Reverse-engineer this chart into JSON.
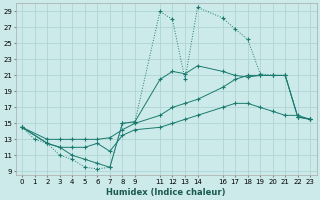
{
  "bg_color": "#cceaea",
  "grid_color": "#b0d4d4",
  "line_color": "#1a7a6e",
  "xlabel": "Humidex (Indice chaleur)",
  "xlim": [
    -0.5,
    23.5
  ],
  "ylim": [
    8.5,
    30
  ],
  "yticks": [
    9,
    11,
    13,
    15,
    17,
    19,
    21,
    23,
    25,
    27,
    29
  ],
  "xticks": [
    0,
    1,
    2,
    3,
    4,
    5,
    6,
    7,
    8,
    9,
    11,
    12,
    13,
    14,
    16,
    17,
    18,
    19,
    20,
    21,
    22,
    23
  ],
  "line1_x": [
    0,
    1,
    2,
    3,
    4,
    5,
    6,
    7,
    8,
    9,
    11,
    12,
    13,
    14,
    16,
    17,
    18,
    19,
    20,
    21,
    22,
    23
  ],
  "line1_y": [
    14.5,
    13.0,
    12.5,
    11.0,
    10.5,
    9.5,
    9.3,
    9.5,
    15.0,
    15.2,
    29.0,
    28.0,
    20.5,
    29.5,
    28.2,
    26.8,
    25.5,
    21.2,
    21.0,
    21.0,
    15.8,
    15.5
  ],
  "line2_x": [
    0,
    2,
    3,
    4,
    5,
    6,
    7,
    8,
    9,
    11,
    12,
    13,
    14,
    16,
    17,
    18,
    19,
    20,
    21,
    22,
    23
  ],
  "line2_y": [
    14.5,
    12.5,
    12.0,
    11.0,
    10.5,
    10.0,
    9.5,
    15.0,
    15.2,
    20.5,
    21.5,
    21.2,
    22.2,
    21.5,
    21.0,
    20.8,
    21.0,
    21.0,
    21.0,
    15.8,
    15.5
  ],
  "line3_x": [
    0,
    2,
    3,
    4,
    5,
    6,
    7,
    8,
    9,
    11,
    12,
    13,
    14,
    16,
    17,
    18,
    19,
    20,
    21,
    22,
    23
  ],
  "line3_y": [
    14.5,
    13.0,
    13.0,
    13.0,
    13.0,
    13.0,
    13.2,
    14.2,
    15.0,
    16.0,
    17.0,
    17.5,
    18.0,
    19.5,
    20.5,
    21.0,
    21.0,
    21.0,
    21.0,
    15.8,
    15.5
  ],
  "line4_x": [
    0,
    2,
    3,
    4,
    5,
    6,
    7,
    8,
    9,
    11,
    12,
    13,
    14,
    16,
    17,
    18,
    19,
    20,
    21,
    22,
    23
  ],
  "line4_y": [
    14.5,
    12.5,
    12.0,
    12.0,
    12.0,
    12.5,
    11.5,
    13.5,
    14.2,
    14.5,
    15.0,
    15.5,
    16.0,
    17.0,
    17.5,
    17.5,
    17.0,
    16.5,
    16.0,
    16.0,
    15.5
  ]
}
